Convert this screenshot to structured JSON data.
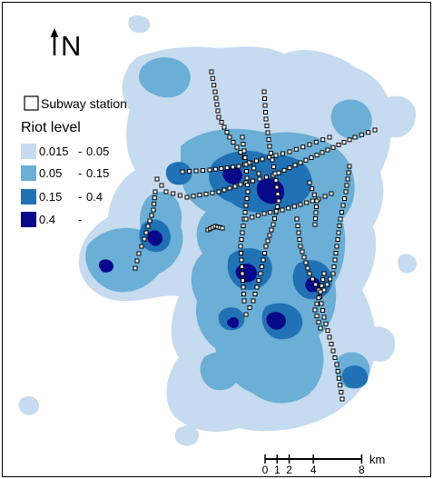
{
  "north_arrow": {
    "label": "N",
    "icon": "north-arrow-icon"
  },
  "legend": {
    "station_label": "Subway station",
    "title": "Riot level",
    "classes": [
      {
        "label_from": "0.015",
        "label_sep": "-",
        "label_to": "0.05",
        "color": "#c6dbef"
      },
      {
        "label_from": "0.05",
        "label_sep": "-",
        "label_to": "0.15",
        "color": "#6baed6"
      },
      {
        "label_from": "0.15",
        "label_sep": "-",
        "label_to": "0.4",
        "color": "#2171b5"
      },
      {
        "label_from": "0.4",
        "label_sep": "-",
        "label_to": "",
        "color": "#08088a"
      }
    ]
  },
  "scale_bar": {
    "ticks": [
      "0",
      "1",
      "2",
      "4",
      "8"
    ],
    "tick_values": [
      0,
      1,
      2,
      4,
      8
    ],
    "unit": "km"
  },
  "colors": {
    "station_fill": "#ffffff",
    "station_stroke": "#000000"
  }
}
